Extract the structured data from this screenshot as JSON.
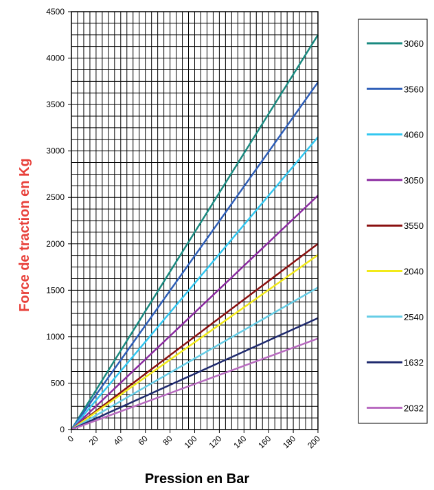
{
  "chart_data": {
    "type": "line",
    "xlabel": "Pression en Bar",
    "ylabel": "Force de traction en Kg",
    "xlim": [
      0,
      200
    ],
    "ylim": [
      0,
      4500
    ],
    "x_ticks": [
      "0",
      "20",
      "40",
      "60",
      "80",
      "100",
      "120",
      "140",
      "160",
      "180",
      "200"
    ],
    "y_ticks": [
      "0",
      "500",
      "1000",
      "1500",
      "2000",
      "2500",
      "3000",
      "3500",
      "4000",
      "4500"
    ],
    "grid": true,
    "legend_position": "right",
    "x": [
      0,
      200
    ],
    "series": [
      {
        "name": "3060",
        "color": "#1a8a80",
        "values": [
          0,
          4250
        ]
      },
      {
        "name": "3560",
        "color": "#2f5fb8",
        "values": [
          0,
          3740
        ]
      },
      {
        "name": "4060",
        "color": "#33c7f0",
        "values": [
          0,
          3150
        ]
      },
      {
        "name": "3050",
        "color": "#8a2aa0",
        "values": [
          0,
          2520
        ]
      },
      {
        "name": "3550",
        "color": "#8a1010",
        "values": [
          0,
          2000
        ]
      },
      {
        "name": "2040",
        "color": "#f2ea1a",
        "values": [
          0,
          1880
        ]
      },
      {
        "name": "2540",
        "color": "#66cde6",
        "values": [
          0,
          1530
        ]
      },
      {
        "name": "1632",
        "color": "#1f2a6e",
        "values": [
          0,
          1200
        ]
      },
      {
        "name": "2032",
        "color": "#b86ac0",
        "values": [
          0,
          980
        ]
      }
    ]
  }
}
